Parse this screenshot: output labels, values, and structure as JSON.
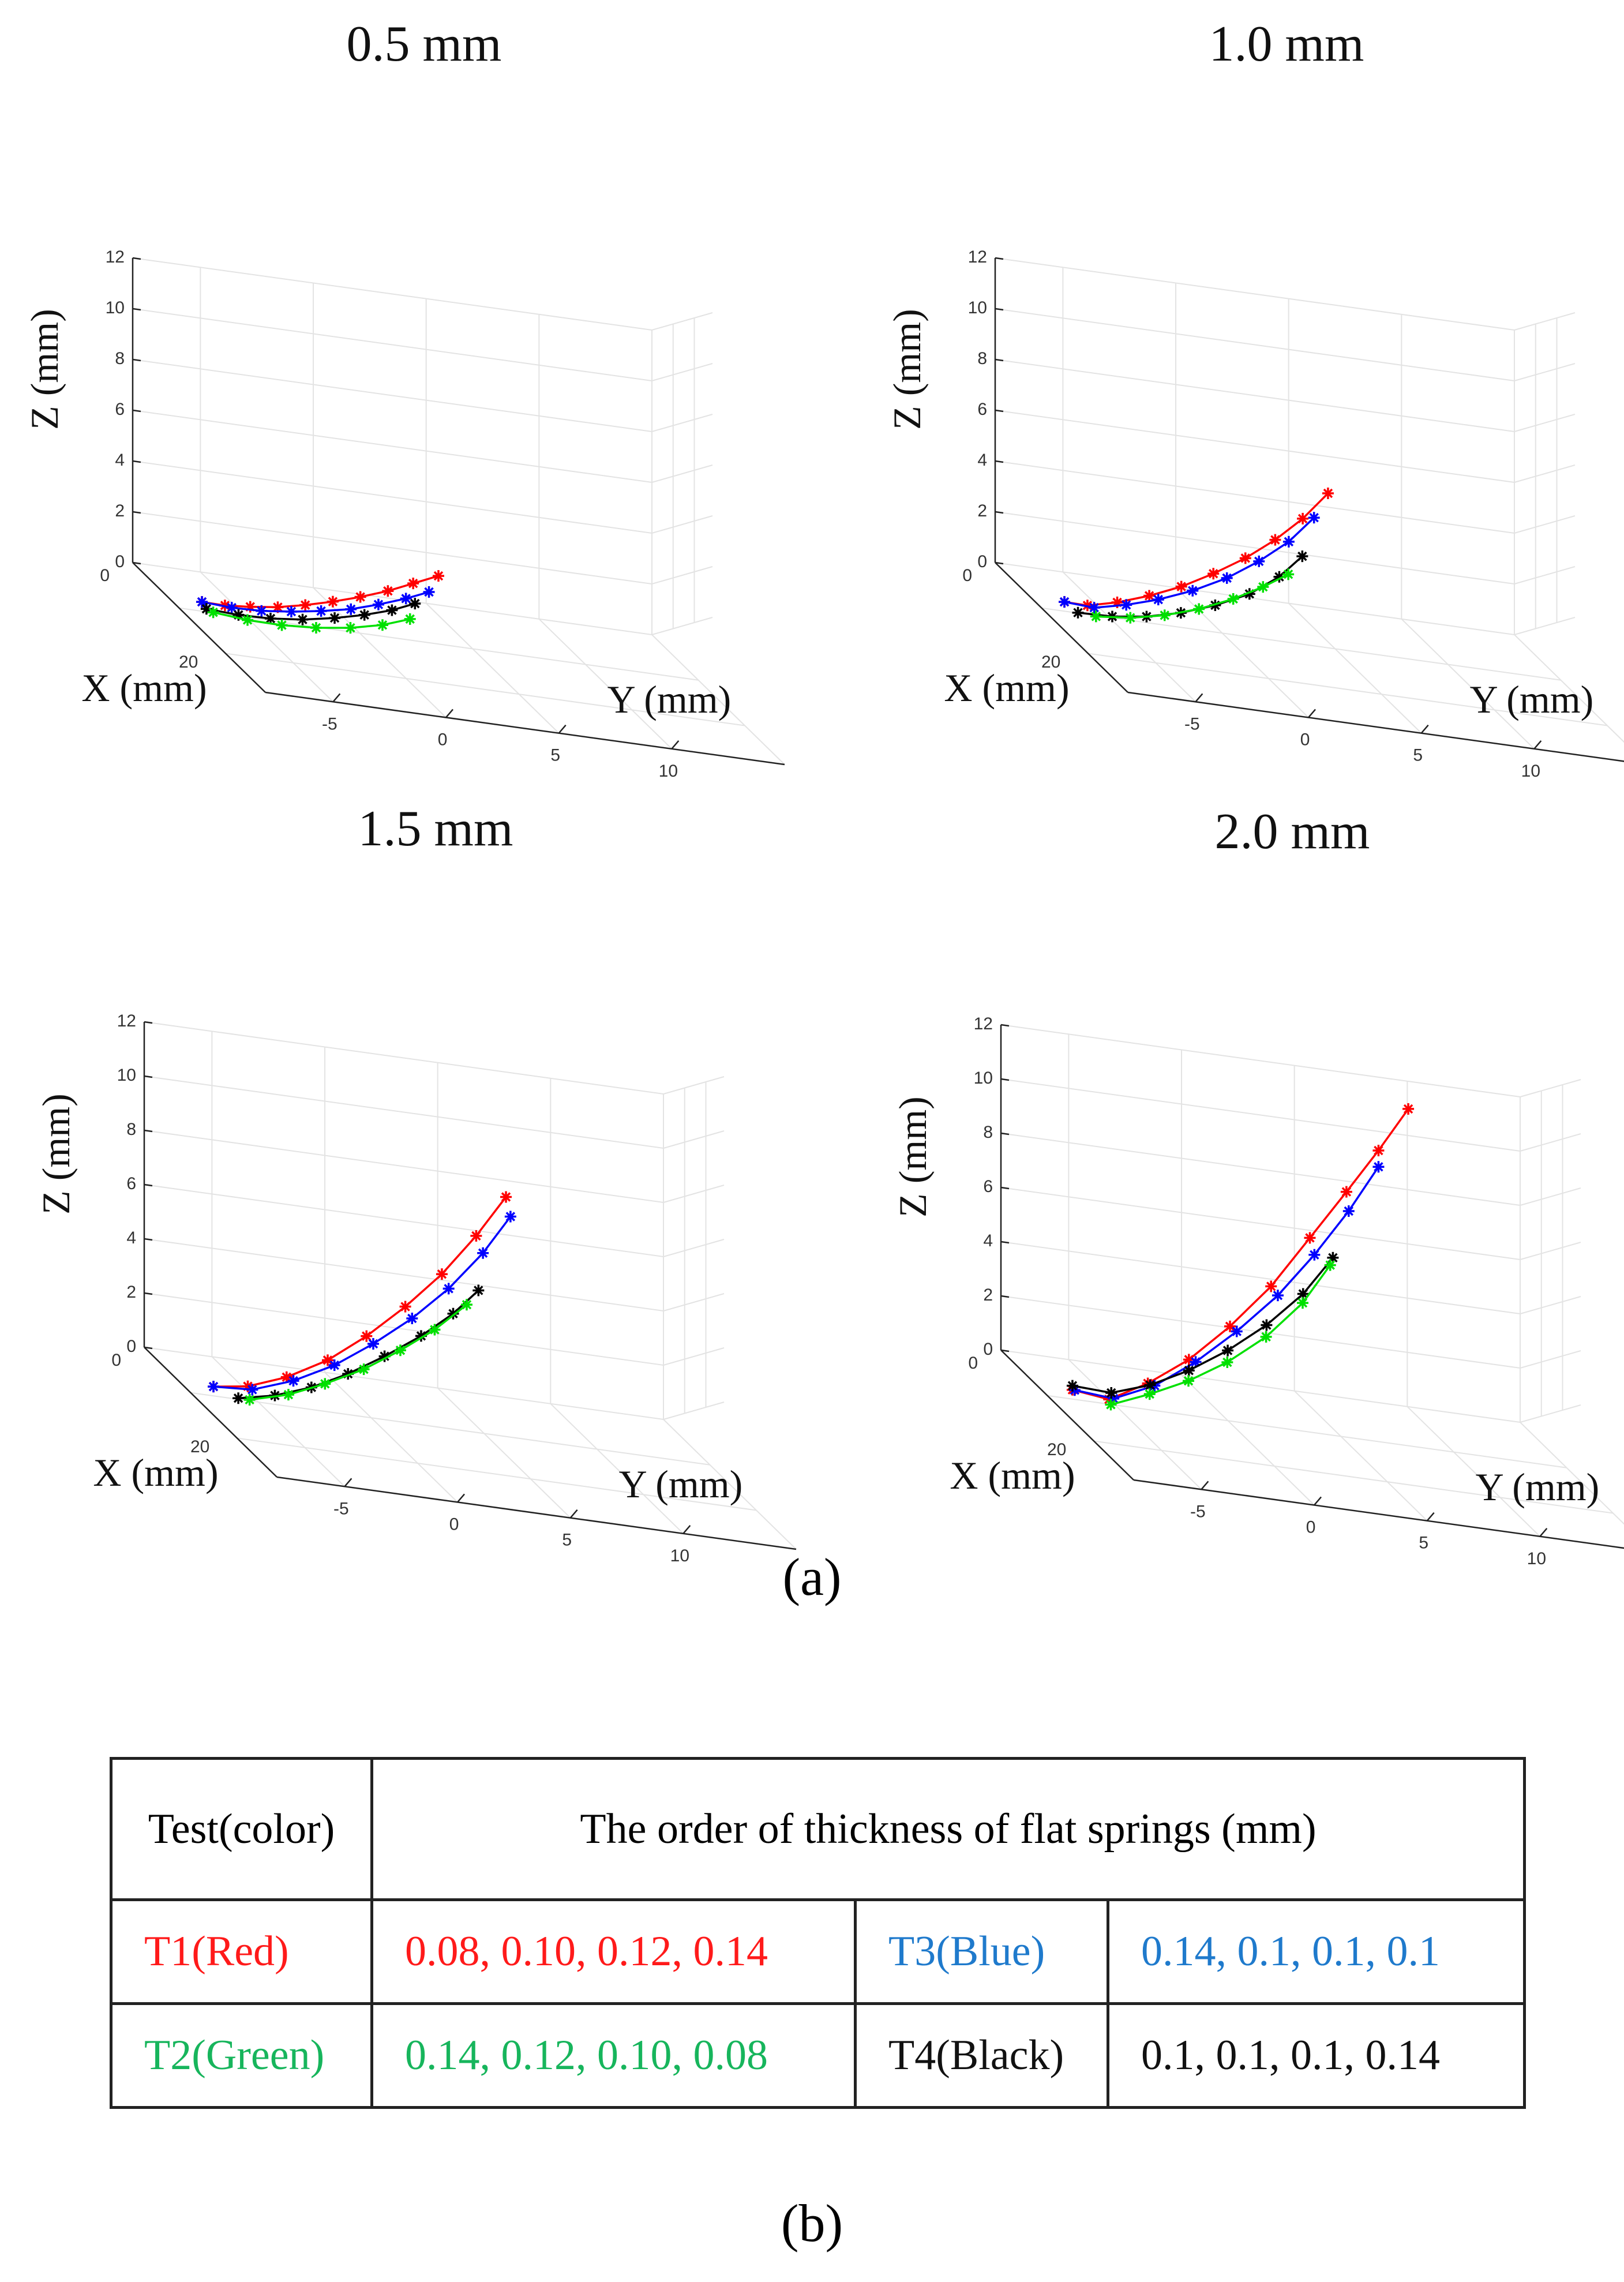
{
  "figure": {
    "caption_a": "(a)",
    "caption_b": "(b)"
  },
  "chart_data": [
    {
      "type": "line3d",
      "title": "0.5 mm",
      "xlabel": "X (mm)",
      "ylabel": "Y (mm)",
      "zlabel": "Z (mm)",
      "xlim": [
        0,
        30
      ],
      "ylim": [
        -8,
        15
      ],
      "zlim": [
        0,
        12
      ],
      "xticks": [
        0,
        20
      ],
      "yticks": [
        -5,
        0,
        5,
        10
      ],
      "zticks": [
        0,
        2,
        4,
        6,
        8,
        10,
        12
      ],
      "grid": true,
      "series": [
        {
          "color": "#ff0000",
          "y": [
            -6.5,
            -5.5,
            -4.4,
            -3.2,
            -2,
            -0.8,
            0.4,
            1.6,
            2.7,
            3.8
          ],
          "z": [
            0,
            0,
            0.1,
            0.25,
            0.5,
            0.8,
            1.15,
            1.55,
            2,
            2.45
          ]
        },
        {
          "color": "#0000ff",
          "y": [
            -6.5,
            -5.2,
            -3.9,
            -2.6,
            -1.3,
            0,
            1.2,
            2.4,
            3.4
          ],
          "z": [
            0,
            -0.05,
            0,
            0.15,
            0.35,
            0.6,
            0.95,
            1.35,
            1.75
          ]
        },
        {
          "color": "#000000",
          "y": [
            -6.3,
            -4.9,
            -3.5,
            -2.1,
            -0.7,
            0.6,
            1.8,
            2.8
          ],
          "z": [
            -0.25,
            -0.3,
            -0.25,
            -0.1,
            0.15,
            0.45,
            0.8,
            1.2
          ]
        },
        {
          "color": "#00e000",
          "y": [
            -6,
            -4.5,
            -3,
            -1.5,
            0,
            1.4,
            2.6
          ],
          "z": [
            -0.35,
            -0.45,
            -0.45,
            -0.35,
            -0.15,
            0.15,
            0.55
          ]
        }
      ]
    },
    {
      "type": "line3d",
      "title": "1.0 mm",
      "xlabel": "X (mm)",
      "ylabel": "Y (mm)",
      "zlabel": "Z (mm)",
      "xlim": [
        0,
        30
      ],
      "ylim": [
        -8,
        15
      ],
      "zlim": [
        0,
        12
      ],
      "xticks": [
        0,
        20
      ],
      "yticks": [
        -5,
        0,
        5,
        10
      ],
      "zticks": [
        0,
        2,
        4,
        6,
        8,
        10,
        12
      ],
      "grid": true,
      "series": [
        {
          "color": "#ff0000",
          "y": [
            -6.5,
            -5.5,
            -4.2,
            -2.8,
            -1.4,
            0,
            1.4,
            2.7,
            3.9,
            5
          ],
          "z": [
            0,
            0,
            0.3,
            0.75,
            1.3,
            2,
            2.8,
            3.7,
            4.7,
            5.85
          ]
        },
        {
          "color": "#0000ff",
          "y": [
            -6.5,
            -5.2,
            -3.8,
            -2.4,
            -0.9,
            0.6,
            2,
            3.3,
            4.4
          ],
          "z": [
            0,
            -0.05,
            0.25,
            0.65,
            1.2,
            1.9,
            2.75,
            3.7,
            4.8
          ]
        },
        {
          "color": "#000000",
          "y": [
            -5.9,
            -4.4,
            -2.9,
            -1.4,
            0.1,
            1.6,
            2.9,
            3.9
          ],
          "z": [
            -0.35,
            -0.3,
            -0.1,
            0.25,
            0.75,
            1.4,
            2.25,
            3.2
          ]
        },
        {
          "color": "#00e000",
          "y": [
            -5.1,
            -3.6,
            -2.1,
            -0.6,
            0.9,
            2.2,
            3.3
          ],
          "z": [
            -0.4,
            -0.25,
            0.05,
            0.5,
            1.1,
            1.75,
            2.4
          ]
        }
      ]
    },
    {
      "type": "line3d",
      "title": "1.5 mm",
      "xlabel": "X (mm)",
      "ylabel": "Y (mm)",
      "zlabel": "Z (mm)",
      "xlim": [
        0,
        30
      ],
      "ylim": [
        -8,
        15
      ],
      "zlim": [
        0,
        12
      ],
      "xticks": [
        0,
        20
      ],
      "yticks": [
        -5,
        0,
        5,
        10
      ],
      "zticks": [
        0,
        2,
        4,
        6,
        8,
        10,
        12
      ],
      "grid": true,
      "series": [
        {
          "color": "#ff0000",
          "y": [
            -6.5,
            -5,
            -3.3,
            -1.5,
            0.2,
            1.9,
            3.5,
            5,
            6.3
          ],
          "z": [
            0,
            0.2,
            0.75,
            1.6,
            2.7,
            4,
            5.4,
            7,
            8.6
          ]
        },
        {
          "color": "#0000ff",
          "y": [
            -6.5,
            -4.8,
            -3,
            -1.2,
            0.5,
            2.2,
            3.8,
            5.3,
            6.5
          ],
          "z": [
            0,
            0.1,
            0.65,
            1.45,
            2.45,
            3.6,
            4.9,
            6.4,
            7.9
          ]
        },
        {
          "color": "#000000",
          "y": [
            -5.4,
            -3.8,
            -2.2,
            -0.6,
            1,
            2.6,
            4,
            5.1
          ],
          "z": [
            -0.3,
            0,
            0.5,
            1.2,
            2.05,
            3,
            4,
            5
          ]
        },
        {
          "color": "#00e000",
          "y": [
            -4.9,
            -3.2,
            -1.6,
            0.1,
            1.7,
            3.2,
            4.6
          ],
          "z": [
            -0.3,
            0.1,
            0.7,
            1.45,
            2.35,
            3.3,
            4.4
          ]
        }
      ]
    },
    {
      "type": "line3d",
      "title": "2.0 mm",
      "xlabel": "X (mm)",
      "ylabel": "Y (mm)",
      "zlabel": "Z (mm)",
      "xlim": [
        0,
        30
      ],
      "ylim": [
        -8,
        15
      ],
      "zlim": [
        0,
        12
      ],
      "xticks": [
        0,
        20
      ],
      "yticks": [
        -5,
        0,
        5,
        10
      ],
      "zticks": [
        0,
        2,
        4,
        6,
        8,
        10,
        12
      ],
      "grid": true,
      "series": [
        {
          "color": "#ff0000",
          "y": [
            -6.4,
            -4.8,
            -3.1,
            -1.3,
            0.5,
            2.3,
            4,
            5.6,
            7,
            8.3
          ],
          "z": [
            0,
            -0.15,
            0.65,
            1.75,
            3.2,
            4.9,
            6.9,
            8.8,
            10.5,
            12.2
          ]
        },
        {
          "color": "#0000ff",
          "y": [
            -6.3,
            -4.6,
            -2.8,
            -1,
            0.8,
            2.6,
            4.2,
            5.7,
            7
          ],
          "z": [
            0,
            -0.1,
            0.6,
            1.7,
            3.05,
            4.6,
            6.3,
            8.1,
            9.9
          ]
        },
        {
          "color": "#000000",
          "y": [
            -6.4,
            -4.7,
            -3,
            -1.3,
            0.4,
            2.1,
            3.7,
            5
          ],
          "z": [
            0.15,
            0.1,
            0.6,
            1.35,
            2.3,
            3.45,
            4.8,
            6.3
          ]
        },
        {
          "color": "#00e000",
          "y": [
            -4.7,
            -3,
            -1.3,
            0.4,
            2.1,
            3.7,
            4.9
          ],
          "z": [
            -0.35,
            0.25,
            0.95,
            1.85,
            3,
            4.45,
            6
          ]
        }
      ]
    }
  ],
  "table": {
    "header_test": "Test(color)",
    "header_order": "The order of thickness of flat springs (mm)",
    "rows": [
      {
        "test1": "T1(Red)",
        "order1": "0.08, 0.10, 0.12, 0.14",
        "color1": "#ff1a1a",
        "test2": "T3(Blue)",
        "order2": "0.14, 0.1, 0.1, 0.1",
        "color2": "#1f7acc"
      },
      {
        "test1": "T2(Green)",
        "order1": "0.14, 0.12, 0.10, 0.08",
        "color1": "#17b55c",
        "test2": "T4(Black)",
        "order2": "0.1, 0.1, 0.1, 0.14",
        "color2": "#111111"
      }
    ]
  }
}
